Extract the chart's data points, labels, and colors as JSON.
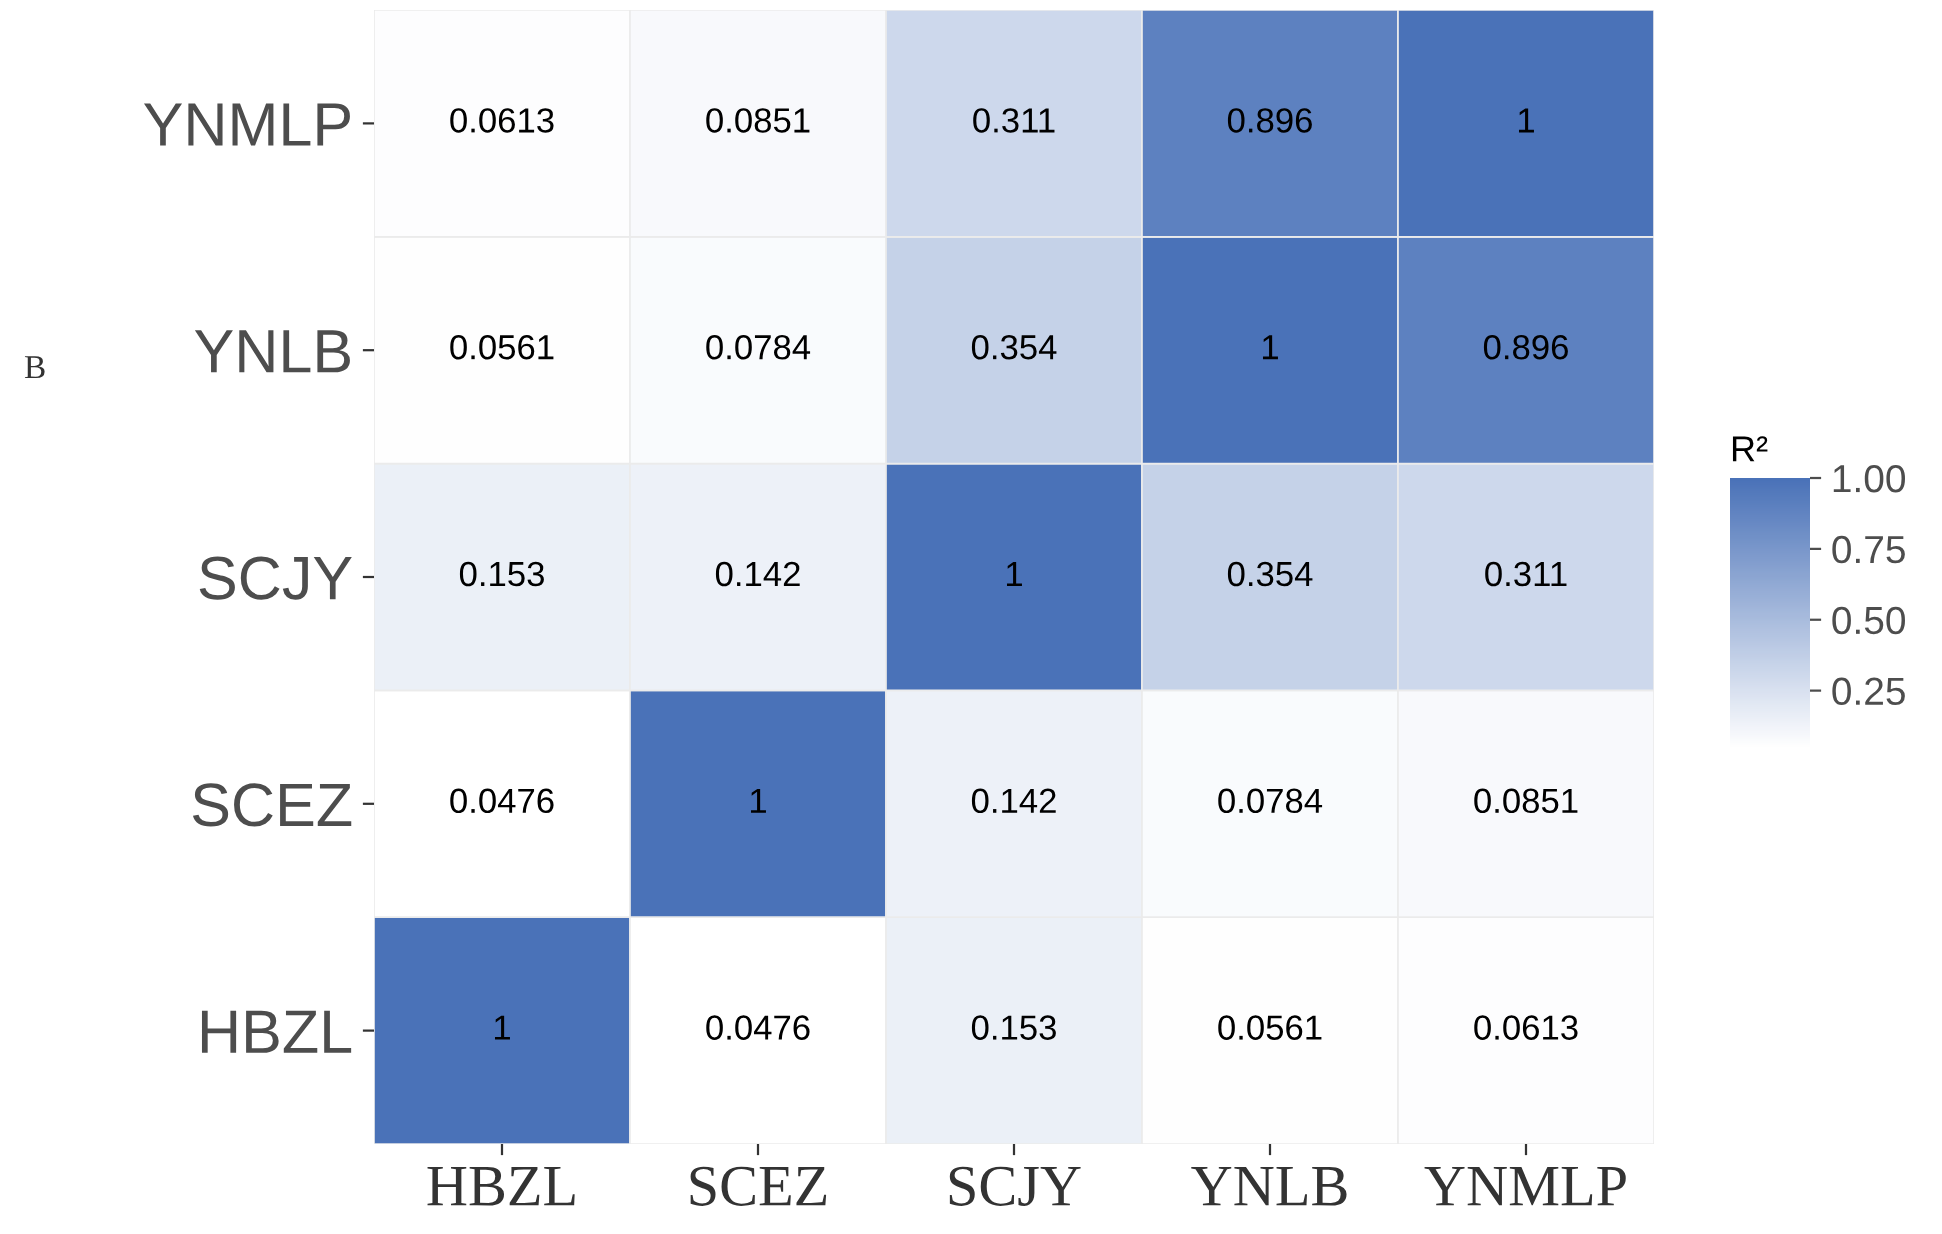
{
  "chart_data": {
    "type": "heatmap",
    "categories": [
      "HBZL",
      "SCEZ",
      "SCJY",
      "YNLB",
      "YNMLP"
    ],
    "y_categories": [
      "YNMLP",
      "YNLB",
      "SCJY",
      "SCEZ",
      "HBZL"
    ],
    "cells": [
      [
        0.0613,
        0.0851,
        0.311,
        0.896,
        1
      ],
      [
        0.0561,
        0.0784,
        0.354,
        1,
        0.896
      ],
      [
        0.153,
        0.142,
        1,
        0.354,
        0.311
      ],
      [
        0.0476,
        1,
        0.142,
        0.0784,
        0.0851
      ],
      [
        1,
        0.0476,
        0.153,
        0.0561,
        0.0613
      ]
    ],
    "data_labels": true,
    "clabel": "R²",
    "clim": [
      0.0476,
      1
    ],
    "cticks": [
      {
        "value": 0.25,
        "label": "0.25"
      },
      {
        "value": 0.5,
        "label": "0.50"
      },
      {
        "value": 0.75,
        "label": "0.75"
      },
      {
        "value": 1,
        "label": "1.00"
      }
    ],
    "colors": [
      "#ffffff",
      "#4a72b8"
    ],
    "annotations": [
      "B"
    ]
  }
}
